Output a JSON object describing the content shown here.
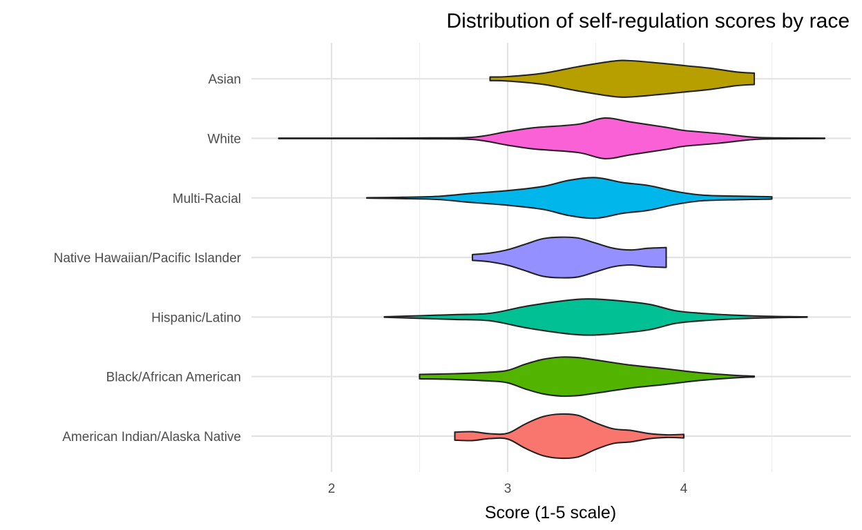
{
  "chart_data": {
    "type": "violin",
    "title": "Distribution of self-regulation scores by race",
    "xlabel": "Score (1-5 scale)",
    "ylabel": "",
    "xlim": [
      1.5,
      4.85
    ],
    "x_ticks": [
      2,
      3,
      4
    ],
    "x_minor_ticks": [
      2.5,
      3.5,
      4.5
    ],
    "grid": true,
    "orientation": "horizontal",
    "series": [
      {
        "name": "American Indian/Alaska Native",
        "color": "#F8766D",
        "density": [
          [
            2.7,
            0.18
          ],
          [
            2.8,
            0.2
          ],
          [
            2.9,
            0.11
          ],
          [
            3.0,
            0.13
          ],
          [
            3.1,
            0.55
          ],
          [
            3.2,
            0.88
          ],
          [
            3.3,
            1.0
          ],
          [
            3.4,
            0.94
          ],
          [
            3.5,
            0.6
          ],
          [
            3.6,
            0.33
          ],
          [
            3.7,
            0.26
          ],
          [
            3.8,
            0.12
          ],
          [
            3.9,
            0.06
          ],
          [
            4.0,
            0.08
          ]
        ]
      },
      {
        "name": "Black/African American",
        "color": "#53B400",
        "density": [
          [
            2.5,
            0.1
          ],
          [
            2.7,
            0.13
          ],
          [
            2.9,
            0.2
          ],
          [
            3.0,
            0.28
          ],
          [
            3.1,
            0.56
          ],
          [
            3.2,
            0.78
          ],
          [
            3.3,
            0.88
          ],
          [
            3.4,
            0.86
          ],
          [
            3.5,
            0.75
          ],
          [
            3.7,
            0.52
          ],
          [
            3.9,
            0.35
          ],
          [
            4.1,
            0.17
          ],
          [
            4.3,
            0.05
          ],
          [
            4.4,
            0.02
          ]
        ]
      },
      {
        "name": "Hispanic/Latino",
        "color": "#00C094",
        "density": [
          [
            2.3,
            0.01
          ],
          [
            2.5,
            0.06
          ],
          [
            2.7,
            0.11
          ],
          [
            2.9,
            0.17
          ],
          [
            3.1,
            0.48
          ],
          [
            3.3,
            0.72
          ],
          [
            3.45,
            0.82
          ],
          [
            3.6,
            0.76
          ],
          [
            3.8,
            0.58
          ],
          [
            3.95,
            0.29
          ],
          [
            4.1,
            0.17
          ],
          [
            4.3,
            0.08
          ],
          [
            4.5,
            0.03
          ],
          [
            4.7,
            0.01
          ]
        ]
      },
      {
        "name": "Native Hawaiian/Pacific Islander",
        "color": "#9590FF",
        "density": [
          [
            2.8,
            0.13
          ],
          [
            2.9,
            0.2
          ],
          [
            3.0,
            0.35
          ],
          [
            3.1,
            0.6
          ],
          [
            3.2,
            0.85
          ],
          [
            3.3,
            0.92
          ],
          [
            3.4,
            0.88
          ],
          [
            3.5,
            0.65
          ],
          [
            3.6,
            0.42
          ],
          [
            3.7,
            0.34
          ],
          [
            3.8,
            0.42
          ],
          [
            3.9,
            0.45
          ]
        ]
      },
      {
        "name": "Multi-Racial",
        "color": "#00B6EB",
        "density": [
          [
            2.2,
            0.01
          ],
          [
            2.4,
            0.03
          ],
          [
            2.6,
            0.07
          ],
          [
            2.8,
            0.21
          ],
          [
            3.0,
            0.33
          ],
          [
            3.2,
            0.52
          ],
          [
            3.35,
            0.8
          ],
          [
            3.5,
            0.92
          ],
          [
            3.65,
            0.7
          ],
          [
            3.8,
            0.56
          ],
          [
            3.95,
            0.3
          ],
          [
            4.1,
            0.13
          ],
          [
            4.3,
            0.08
          ],
          [
            4.45,
            0.06
          ],
          [
            4.5,
            0.05
          ]
        ]
      },
      {
        "name": "White",
        "color": "#FB61D7",
        "density": [
          [
            1.7,
            0.01
          ],
          [
            2.2,
            0.01
          ],
          [
            2.5,
            0.02
          ],
          [
            2.8,
            0.05
          ],
          [
            3.0,
            0.31
          ],
          [
            3.15,
            0.48
          ],
          [
            3.4,
            0.64
          ],
          [
            3.55,
            0.92
          ],
          [
            3.7,
            0.74
          ],
          [
            3.9,
            0.5
          ],
          [
            4.0,
            0.36
          ],
          [
            4.2,
            0.22
          ],
          [
            4.4,
            0.05
          ],
          [
            4.6,
            0.02
          ],
          [
            4.8,
            0.01
          ]
        ]
      },
      {
        "name": "Asian",
        "color": "#B79F00",
        "density": [
          [
            2.9,
            0.08
          ],
          [
            3.0,
            0.1
          ],
          [
            3.2,
            0.25
          ],
          [
            3.4,
            0.55
          ],
          [
            3.6,
            0.8
          ],
          [
            3.7,
            0.82
          ],
          [
            3.85,
            0.72
          ],
          [
            4.0,
            0.6
          ],
          [
            4.15,
            0.48
          ],
          [
            4.3,
            0.31
          ],
          [
            4.4,
            0.26
          ]
        ]
      }
    ]
  }
}
